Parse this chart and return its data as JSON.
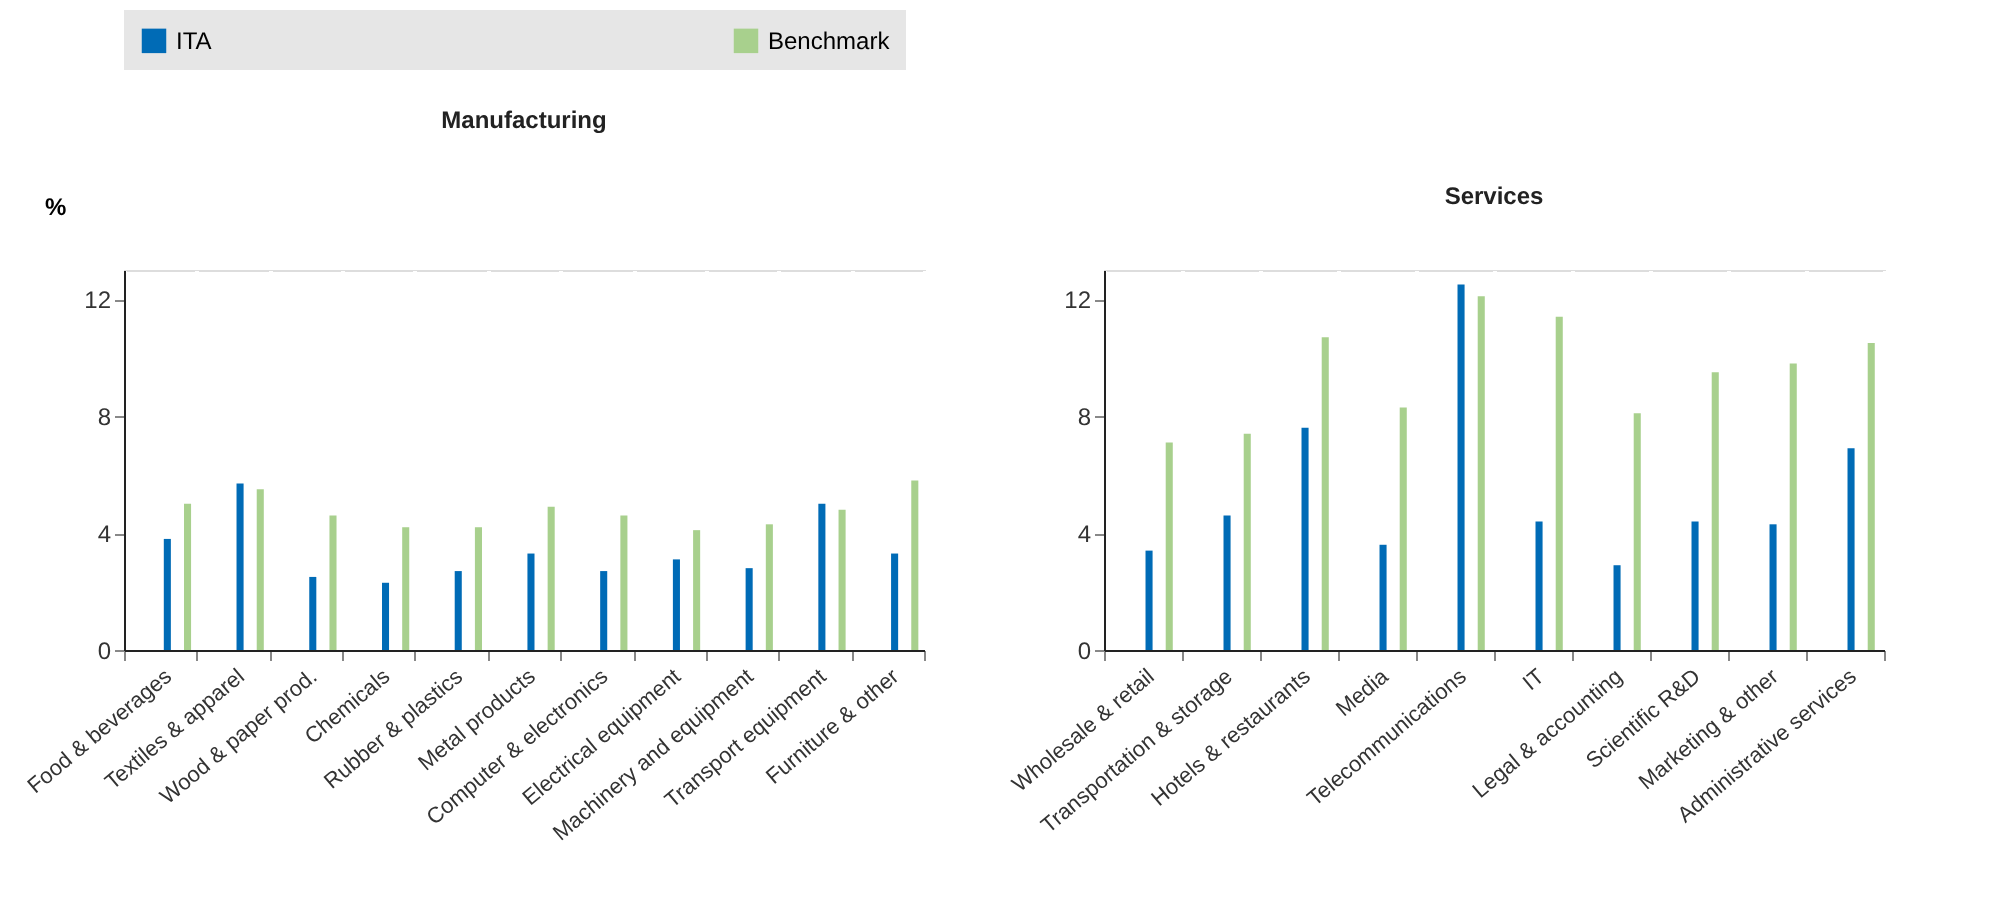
{
  "chart_data": [
    {
      "type": "bar",
      "title": "Manufacturing",
      "ylabel": "%",
      "categories": [
        "Food & beverages",
        "Textiles & apparel",
        "Wood & paper prod.",
        "Chemicals",
        "Rubber & plastics",
        "Metal products",
        "Computer & electronics",
        "Electrical equipment",
        "Machinery and equipment",
        "Transport equipment",
        "Furniture & other"
      ],
      "series": [
        {
          "name": "ITA",
          "color": "#006bb6",
          "values": [
            3.8,
            5.7,
            2.5,
            2.3,
            2.7,
            3.3,
            2.7,
            3.1,
            2.8,
            5.0,
            3.3
          ]
        },
        {
          "name": "Benchmark",
          "color": "#a8d08d",
          "values": [
            5.0,
            5.5,
            4.6,
            4.2,
            4.2,
            4.9,
            4.6,
            4.1,
            4.3,
            4.8,
            5.8
          ]
        }
      ],
      "ylim": [
        0,
        13
      ],
      "yticks": [
        0,
        4,
        8,
        12
      ],
      "grid": true,
      "legend": "top"
    },
    {
      "type": "bar",
      "title": "Services",
      "categories": [
        "Wholesale & retail",
        "Transportation & storage",
        "Hotels & restaurants",
        "Media",
        "Telecommunications",
        "IT",
        "Legal & accounting",
        "Scientific R&D",
        "Marketing & other",
        "Administrative services"
      ],
      "series": [
        {
          "name": "ITA",
          "color": "#006bb6",
          "values": [
            3.4,
            4.6,
            7.6,
            3.6,
            12.5,
            4.4,
            2.9,
            4.4,
            4.3,
            6.9
          ]
        },
        {
          "name": "Benchmark",
          "color": "#a8d08d",
          "values": [
            7.1,
            7.4,
            10.7,
            8.3,
            12.1,
            11.4,
            8.1,
            9.5,
            9.8,
            10.5
          ]
        }
      ],
      "ylim": [
        0,
        13
      ],
      "yticks": [
        0,
        4,
        8,
        12
      ],
      "grid": true,
      "legend": "top"
    }
  ]
}
